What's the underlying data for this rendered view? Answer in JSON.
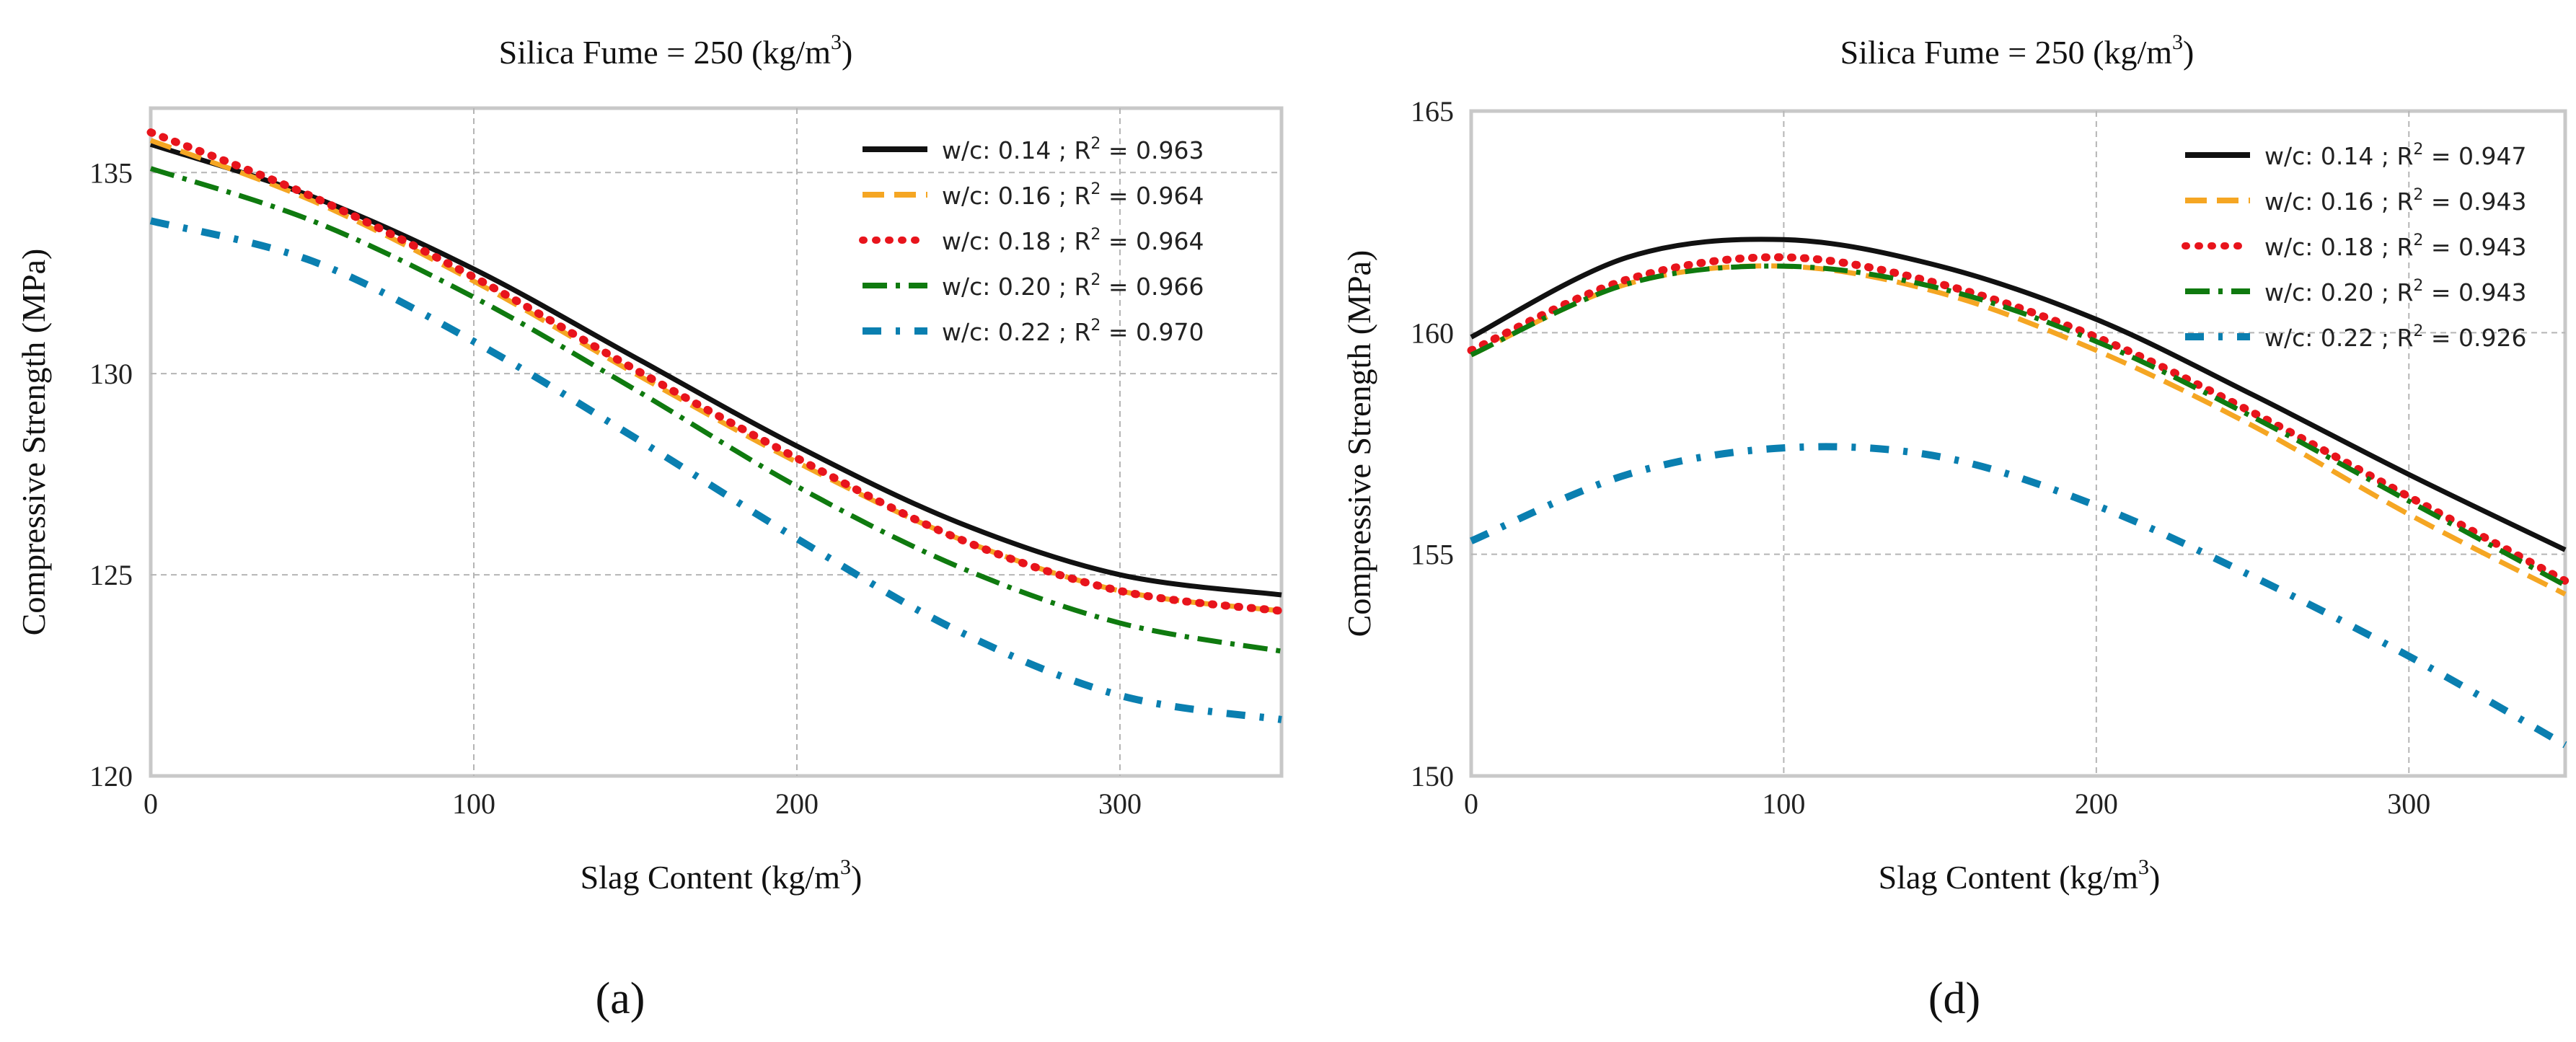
{
  "chart_data": [
    {
      "type": "line",
      "panel_label": "(a)",
      "title": "Silica Fume = 250 (kg/m³)",
      "title_main": "Silica Fume = 250 (kg/m",
      "title_sup": "3",
      "title_end": ")",
      "xlabel": "Slag Content (kg/m³)",
      "xlabel_main": "Slag Content (kg/m",
      "xlabel_sup": "3",
      "xlabel_end": ")",
      "ylabel": "Compressive Strength (MPa)",
      "xlim": [
        0,
        350
      ],
      "ylim": [
        120,
        136.6
      ],
      "xticks": [
        0,
        100,
        200,
        300
      ],
      "yticks": [
        120,
        125,
        130,
        135
      ],
      "grid": true,
      "legend_position": "upper-right",
      "x": [
        0,
        50,
        100,
        150,
        200,
        250,
        300,
        350
      ],
      "series": [
        {
          "name": "w/c: 0.14",
          "r2_label": "R",
          "r2_value": "= 0.963",
          "color": "#111111",
          "style": "solid",
          "values": [
            135.7,
            134.4,
            132.6,
            130.4,
            128.2,
            126.3,
            125.0,
            124.5
          ]
        },
        {
          "name": "w/c: 0.16",
          "r2_label": "R",
          "r2_value": "= 0.964",
          "color": "#f5a623",
          "style": "dashed",
          "values": [
            135.8,
            134.3,
            132.3,
            130.0,
            127.8,
            125.9,
            124.6,
            124.1
          ]
        },
        {
          "name": "w/c: 0.18",
          "r2_label": "R",
          "r2_value": "= 0.964",
          "color": "#e8141c",
          "style": "dotted",
          "values": [
            136.0,
            134.4,
            132.4,
            130.1,
            127.9,
            125.9,
            124.6,
            124.1
          ]
        },
        {
          "name": "w/c: 0.20",
          "r2_label": "R",
          "r2_value": "= 0.966",
          "color": "#0f7a0f",
          "style": "dashdot",
          "values": [
            135.1,
            133.8,
            131.9,
            129.6,
            127.2,
            125.2,
            123.8,
            123.1
          ]
        },
        {
          "name": "w/c: 0.22",
          "r2_label": "R",
          "r2_value": "= 0.970",
          "color": "#0a7fb0",
          "style": "dashdot-sparse",
          "values": [
            133.8,
            132.8,
            130.8,
            128.4,
            125.9,
            123.6,
            122.0,
            121.4
          ]
        }
      ]
    },
    {
      "type": "line",
      "panel_label": "(d)",
      "title": "Silica Fume = 250 (kg/m³)",
      "title_main": "Silica Fume = 250 (kg/m",
      "title_sup": "3",
      "title_end": ")",
      "xlabel": "Slag Content (kg/m³)",
      "xlabel_main": "Slag Content (kg/m",
      "xlabel_sup": "3",
      "xlabel_end": ")",
      "ylabel": "Compressive Strength (MPa)",
      "xlim": [
        0,
        350
      ],
      "ylim": [
        150,
        165
      ],
      "xticks": [
        0,
        100,
        200,
        300
      ],
      "yticks": [
        150,
        155,
        160,
        165
      ],
      "grid": true,
      "legend_position": "upper-right",
      "x": [
        0,
        50,
        100,
        150,
        200,
        250,
        300,
        350
      ],
      "series": [
        {
          "name": "w/c: 0.14",
          "r2_label": "R",
          "r2_value": "= 0.947",
          "color": "#111111",
          "style": "solid",
          "values": [
            159.9,
            161.7,
            162.1,
            161.5,
            160.3,
            158.6,
            156.8,
            155.1
          ]
        },
        {
          "name": "w/c: 0.16",
          "r2_label": "R",
          "r2_value": "= 0.943",
          "color": "#f5a623",
          "style": "dashed",
          "values": [
            159.5,
            161.1,
            161.5,
            160.9,
            159.6,
            157.9,
            155.9,
            154.1
          ]
        },
        {
          "name": "w/c: 0.18",
          "r2_label": "R",
          "r2_value": "= 0.943",
          "color": "#e8141c",
          "style": "dotted",
          "values": [
            159.6,
            161.2,
            161.7,
            161.1,
            159.9,
            158.2,
            156.3,
            154.4
          ]
        },
        {
          "name": "w/c: 0.20",
          "r2_label": "R",
          "r2_value": "= 0.943",
          "color": "#0f7a0f",
          "style": "dashdot",
          "values": [
            159.5,
            161.1,
            161.5,
            161.0,
            159.8,
            158.1,
            156.2,
            154.3
          ]
        },
        {
          "name": "w/c: 0.22",
          "r2_label": "R",
          "r2_value": "= 0.926",
          "color": "#0a7fb0",
          "style": "dashdot-sparse",
          "values": [
            155.3,
            156.8,
            157.4,
            157.2,
            156.1,
            154.5,
            152.7,
            150.7
          ]
        }
      ]
    }
  ]
}
